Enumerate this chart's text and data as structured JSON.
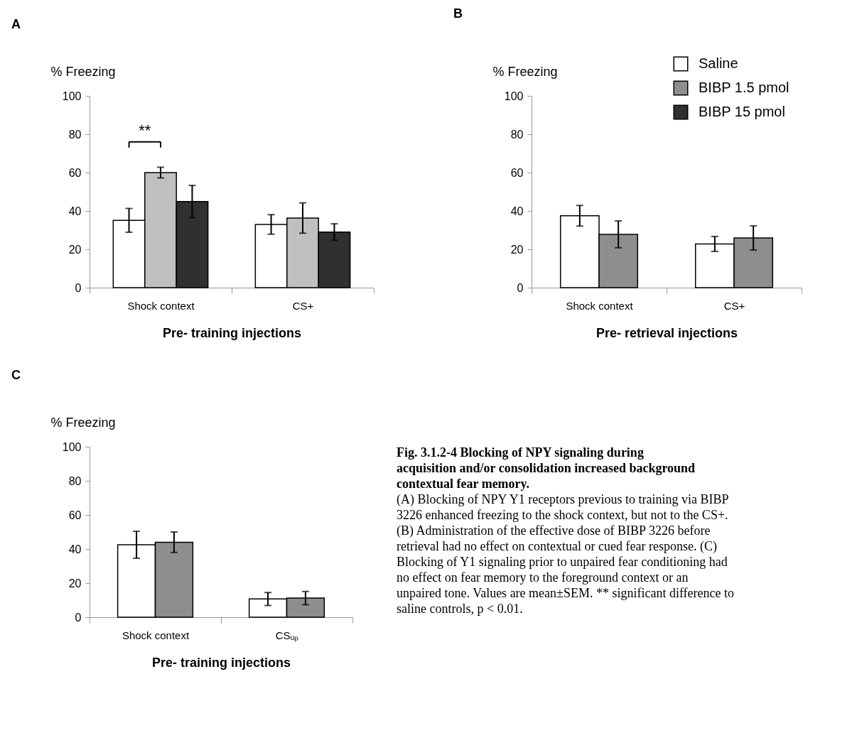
{
  "chart_data": [
    {
      "type": "bar",
      "title": "A",
      "ylabel": "% Freezing",
      "xlabel": "Pre- training injections",
      "categories": [
        "Shock context",
        "CS+"
      ],
      "ylim": [
        0,
        100
      ],
      "yticks": [
        0,
        20,
        40,
        60,
        80,
        100
      ],
      "series": [
        {
          "color": "#ffffff",
          "values": [
            35.1,
            33
          ],
          "errors": [
            6.2,
            5.1
          ]
        },
        {
          "color": "#c0c0c0",
          "values": [
            60,
            36.3
          ],
          "errors": [
            2.8,
            7.9
          ]
        },
        {
          "color": "#303030",
          "values": [
            44.9,
            29
          ],
          "errors": [
            8.4,
            4.3
          ]
        }
      ],
      "annotations": [
        "**"
      ]
    },
    {
      "type": "bar",
      "title": "B",
      "ylabel": "% Freezing",
      "xlabel": "Pre- retrieval injections",
      "categories": [
        "Shock context",
        "CS+"
      ],
      "ylim": [
        0,
        100
      ],
      "yticks": [
        0,
        20,
        40,
        60,
        80,
        100
      ],
      "legend": "top right",
      "series": [
        {
          "name": "Saline",
          "color": "#ffffff",
          "values": [
            37.5,
            22.8
          ],
          "errors": [
            5.4,
            3.9
          ]
        },
        {
          "name": "BIBP 1.5 pmol",
          "color": "#8e8e8e",
          "values": [
            27.8,
            25.9
          ],
          "errors": [
            7,
            6.3
          ]
        },
        {
          "name": "BIBP  15 pmol",
          "color": "#303030",
          "values": [
            null,
            null
          ]
        }
      ]
    },
    {
      "type": "bar",
      "title": "C",
      "ylabel": "% Freezing",
      "xlabel": "Pre- training injections",
      "categories": [
        "Shock context",
        "CSᵤₚ"
      ],
      "ylim": [
        0,
        100
      ],
      "yticks": [
        0,
        20,
        40,
        60,
        80,
        100
      ],
      "series": [
        {
          "color": "#ffffff",
          "values": [
            42.5,
            10.7
          ],
          "errors": [
            7.9,
            3.8
          ]
        },
        {
          "color": "#8e8e8e",
          "values": [
            44,
            11.2
          ],
          "errors": [
            6,
            3.9
          ]
        }
      ]
    },
    {
      "type": "other",
      "title": "Fig. 3.1.2-4 Blocking of NPY signaling during acquisition and/or consolidation increased background contextual fear memory.",
      "annotations": [
        "(A) Blocking of NPY Y1 receptors previous to training via BIBP 3226 enhanced freezing to the shock context, but not to the CS+. (B) Administration of the effective dose of BIBP 3226 before retrieval had no effect on contextual or cued fear response. (C) Blocking of Y1 signaling prior to unpaired fear conditioning had no effect on fear memory to the foreground context or an unpaired tone. Values are mean±SEM. ** significant difference to saline controls, p < 0.01."
      ]
    }
  ]
}
